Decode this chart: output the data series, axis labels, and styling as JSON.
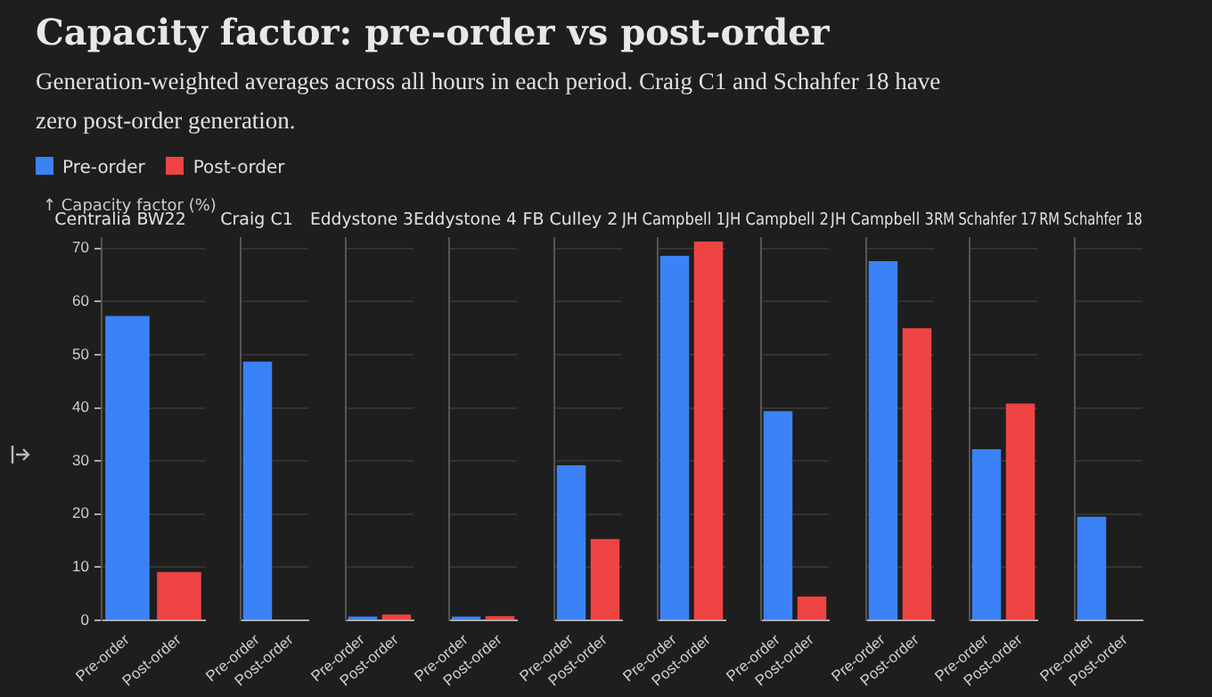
{
  "chart_data": [
    {
      "type": "bar",
      "title": "Capacity factor: pre-order vs post-order",
      "subtitle": "Generation-weighted averages across all hours in each period. Craig C1 and Schahfer 18 have zero post-order generation.",
      "ylabel": "↑ Capacity factor (%)",
      "legend": "top",
      "legend_title": "Centralia BW22",
      "categories": [
        "Pre-order",
        "Post-order"
      ],
      "series": [
        {
          "name": "Pre-order",
          "color": "#3b82f6",
          "values": [
            57.3,
            null
          ]
        },
        {
          "name": "Post-order",
          "color": "#ef4444",
          "values": [
            null,
            9.1
          ]
        }
      ],
      "ylim": [
        0,
        72
      ],
      "yticks": [
        0,
        10,
        20,
        30,
        40,
        50,
        60,
        70
      ],
      "grid": "y"
    },
    {
      "type": "bar",
      "legend_title": "Craig C1",
      "categories": [
        "Pre-order",
        "Post-order"
      ],
      "series": [
        {
          "color": "#3b82f6",
          "values": [
            48.7,
            null
          ]
        },
        {
          "color": "#ef4444",
          "values": [
            null,
            0
          ]
        }
      ],
      "ylim": [
        0,
        72
      ],
      "yticks": [
        0,
        10,
        20,
        30,
        40,
        50,
        60,
        70
      ],
      "grid": "y",
      "tick_labels": "x"
    },
    {
      "type": "bar",
      "legend_title": "Eddystone 3",
      "categories": [
        "Pre-order",
        "Post-order"
      ],
      "series": [
        {
          "color": "#3b82f6",
          "values": [
            0.7,
            null
          ]
        },
        {
          "color": "#ef4444",
          "values": [
            null,
            1.1
          ]
        }
      ],
      "ylim": [
        0,
        72
      ],
      "yticks": [
        0,
        10,
        20,
        30,
        40,
        50,
        60,
        70
      ],
      "grid": "y",
      "tick_labels": "x"
    },
    {
      "type": "bar",
      "legend_title": "Eddystone 4",
      "categories": [
        "Pre-order",
        "Post-order"
      ],
      "series": [
        {
          "color": "#3b82f6",
          "values": [
            0.7,
            null
          ]
        },
        {
          "color": "#ef4444",
          "values": [
            null,
            0.8
          ]
        }
      ],
      "ylim": [
        0,
        72
      ],
      "yticks": [
        0,
        10,
        20,
        30,
        40,
        50,
        60,
        70
      ],
      "grid": "y",
      "tick_labels": "x"
    },
    {
      "type": "bar",
      "legend_title": "FB Culley 2",
      "categories": [
        "Pre-order",
        "Post-order"
      ],
      "series": [
        {
          "color": "#3b82f6",
          "values": [
            29.2,
            null
          ]
        },
        {
          "color": "#ef4444",
          "values": [
            null,
            15.3
          ]
        }
      ],
      "ylim": [
        0,
        72
      ],
      "yticks": [
        0,
        10,
        20,
        30,
        40,
        50,
        60,
        70
      ],
      "grid": "y",
      "tick_labels": "x"
    },
    {
      "type": "bar",
      "legend_title": "JH Campbell 1",
      "categories": [
        "Pre-order",
        "Post-order"
      ],
      "series": [
        {
          "color": "#3b82f6",
          "values": [
            68.6,
            null
          ]
        },
        {
          "color": "#ef4444",
          "values": [
            null,
            71.3
          ]
        }
      ],
      "ylim": [
        0,
        72
      ],
      "yticks": [
        0,
        10,
        20,
        30,
        40,
        50,
        60,
        70
      ],
      "grid": "y",
      "tick_labels": "x"
    },
    {
      "type": "bar",
      "legend_title": "JH Campbell 2",
      "categories": [
        "Pre-order",
        "Post-order"
      ],
      "series": [
        {
          "color": "#3b82f6",
          "values": [
            39.4,
            null
          ]
        },
        {
          "color": "#ef4444",
          "values": [
            null,
            4.5
          ]
        }
      ],
      "ylim": [
        0,
        72
      ],
      "yticks": [
        0,
        10,
        20,
        30,
        40,
        50,
        60,
        70
      ],
      "grid": "y",
      "tick_labels": "x"
    },
    {
      "type": "bar",
      "legend_title": "JH Campbell 3",
      "categories": [
        "Pre-order",
        "Post-order"
      ],
      "series": [
        {
          "color": "#3b82f6",
          "values": [
            67.6,
            null
          ]
        },
        {
          "color": "#ef4444",
          "values": [
            null,
            55.0
          ]
        }
      ],
      "ylim": [
        0,
        72
      ],
      "yticks": [
        0,
        10,
        20,
        30,
        40,
        50,
        60,
        70
      ],
      "grid": "y",
      "tick_labels": "x"
    },
    {
      "type": "bar",
      "legend_title": "RM Schahfer 17",
      "categories": [
        "Pre-order",
        "Post-order"
      ],
      "series": [
        {
          "color": "#3b82f6",
          "values": [
            32.2,
            null
          ]
        },
        {
          "color": "#ef4444",
          "values": [
            null,
            40.8
          ]
        }
      ],
      "ylim": [
        0,
        72
      ],
      "yticks": [
        0,
        10,
        20,
        30,
        40,
        50,
        60,
        70
      ],
      "grid": "y",
      "tick_labels": "x"
    },
    {
      "type": "bar",
      "legend_title": "RM Schahfer 18",
      "categories": [
        "Pre-order",
        "Post-order"
      ],
      "series": [
        {
          "color": "#3b82f6",
          "values": [
            19.5,
            null
          ]
        },
        {
          "color": "#ef4444",
          "values": [
            null,
            0
          ]
        }
      ],
      "ylim": [
        0,
        72
      ],
      "yticks": [
        0,
        10,
        20,
        30,
        40,
        50,
        60,
        70
      ],
      "grid": "y",
      "tick_labels": "x"
    }
  ]
}
